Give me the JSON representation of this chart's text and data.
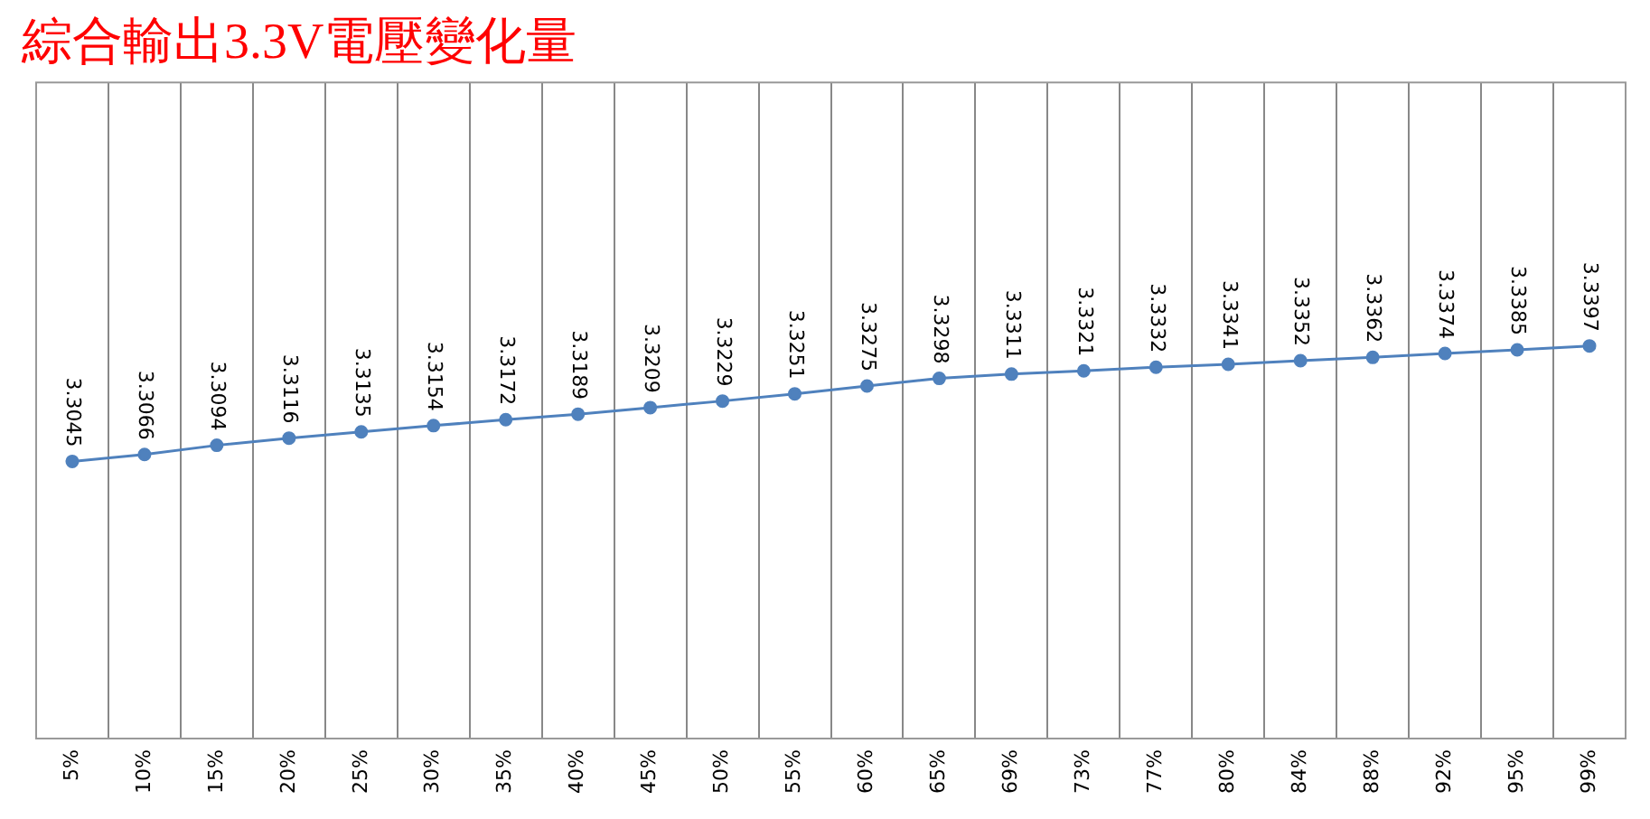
{
  "chart_data": {
    "type": "line",
    "title": "綜合輸出3.3V電壓變化量",
    "categories": [
      "5%",
      "10%",
      "15%",
      "20%",
      "25%",
      "30%",
      "35%",
      "40%",
      "45%",
      "50%",
      "55%",
      "60%",
      "65%",
      "69%",
      "73%",
      "77%",
      "80%",
      "84%",
      "88%",
      "92%",
      "95%",
      "99%"
    ],
    "values": [
      3.3045,
      3.3066,
      3.3094,
      3.3116,
      3.3135,
      3.3154,
      3.3172,
      3.3189,
      3.3209,
      3.3229,
      3.3251,
      3.3275,
      3.3298,
      3.3311,
      3.3321,
      3.3332,
      3.3341,
      3.3352,
      3.3362,
      3.3374,
      3.3385,
      3.3397
    ],
    "color": "#4f81bd",
    "data_labels": true,
    "grid": "x",
    "marker": "circle",
    "line_style": "solid",
    "legend": false,
    "tick_labels": "x"
  }
}
